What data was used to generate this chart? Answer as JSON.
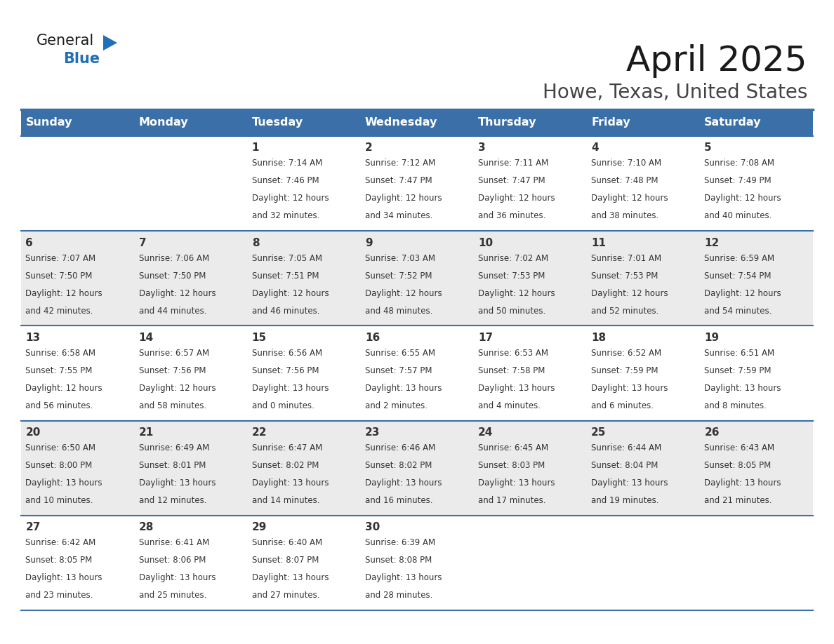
{
  "title": "April 2025",
  "subtitle": "Howe, Texas, United States",
  "header_color": "#3a6fa8",
  "header_text_color": "#ffffff",
  "cell_bg_white": "#ffffff",
  "cell_bg_gray": "#ebebeb",
  "text_color": "#333333",
  "border_color": "#3a6fa8",
  "days_of_week": [
    "Sunday",
    "Monday",
    "Tuesday",
    "Wednesday",
    "Thursday",
    "Friday",
    "Saturday"
  ],
  "weeks": [
    [
      {
        "day": "",
        "info": ""
      },
      {
        "day": "",
        "info": ""
      },
      {
        "day": "1",
        "info": "Sunrise: 7:14 AM\nSunset: 7:46 PM\nDaylight: 12 hours\nand 32 minutes."
      },
      {
        "day": "2",
        "info": "Sunrise: 7:12 AM\nSunset: 7:47 PM\nDaylight: 12 hours\nand 34 minutes."
      },
      {
        "day": "3",
        "info": "Sunrise: 7:11 AM\nSunset: 7:47 PM\nDaylight: 12 hours\nand 36 minutes."
      },
      {
        "day": "4",
        "info": "Sunrise: 7:10 AM\nSunset: 7:48 PM\nDaylight: 12 hours\nand 38 minutes."
      },
      {
        "day": "5",
        "info": "Sunrise: 7:08 AM\nSunset: 7:49 PM\nDaylight: 12 hours\nand 40 minutes."
      }
    ],
    [
      {
        "day": "6",
        "info": "Sunrise: 7:07 AM\nSunset: 7:50 PM\nDaylight: 12 hours\nand 42 minutes."
      },
      {
        "day": "7",
        "info": "Sunrise: 7:06 AM\nSunset: 7:50 PM\nDaylight: 12 hours\nand 44 minutes."
      },
      {
        "day": "8",
        "info": "Sunrise: 7:05 AM\nSunset: 7:51 PM\nDaylight: 12 hours\nand 46 minutes."
      },
      {
        "day": "9",
        "info": "Sunrise: 7:03 AM\nSunset: 7:52 PM\nDaylight: 12 hours\nand 48 minutes."
      },
      {
        "day": "10",
        "info": "Sunrise: 7:02 AM\nSunset: 7:53 PM\nDaylight: 12 hours\nand 50 minutes."
      },
      {
        "day": "11",
        "info": "Sunrise: 7:01 AM\nSunset: 7:53 PM\nDaylight: 12 hours\nand 52 minutes."
      },
      {
        "day": "12",
        "info": "Sunrise: 6:59 AM\nSunset: 7:54 PM\nDaylight: 12 hours\nand 54 minutes."
      }
    ],
    [
      {
        "day": "13",
        "info": "Sunrise: 6:58 AM\nSunset: 7:55 PM\nDaylight: 12 hours\nand 56 minutes."
      },
      {
        "day": "14",
        "info": "Sunrise: 6:57 AM\nSunset: 7:56 PM\nDaylight: 12 hours\nand 58 minutes."
      },
      {
        "day": "15",
        "info": "Sunrise: 6:56 AM\nSunset: 7:56 PM\nDaylight: 13 hours\nand 0 minutes."
      },
      {
        "day": "16",
        "info": "Sunrise: 6:55 AM\nSunset: 7:57 PM\nDaylight: 13 hours\nand 2 minutes."
      },
      {
        "day": "17",
        "info": "Sunrise: 6:53 AM\nSunset: 7:58 PM\nDaylight: 13 hours\nand 4 minutes."
      },
      {
        "day": "18",
        "info": "Sunrise: 6:52 AM\nSunset: 7:59 PM\nDaylight: 13 hours\nand 6 minutes."
      },
      {
        "day": "19",
        "info": "Sunrise: 6:51 AM\nSunset: 7:59 PM\nDaylight: 13 hours\nand 8 minutes."
      }
    ],
    [
      {
        "day": "20",
        "info": "Sunrise: 6:50 AM\nSunset: 8:00 PM\nDaylight: 13 hours\nand 10 minutes."
      },
      {
        "day": "21",
        "info": "Sunrise: 6:49 AM\nSunset: 8:01 PM\nDaylight: 13 hours\nand 12 minutes."
      },
      {
        "day": "22",
        "info": "Sunrise: 6:47 AM\nSunset: 8:02 PM\nDaylight: 13 hours\nand 14 minutes."
      },
      {
        "day": "23",
        "info": "Sunrise: 6:46 AM\nSunset: 8:02 PM\nDaylight: 13 hours\nand 16 minutes."
      },
      {
        "day": "24",
        "info": "Sunrise: 6:45 AM\nSunset: 8:03 PM\nDaylight: 13 hours\nand 17 minutes."
      },
      {
        "day": "25",
        "info": "Sunrise: 6:44 AM\nSunset: 8:04 PM\nDaylight: 13 hours\nand 19 minutes."
      },
      {
        "day": "26",
        "info": "Sunrise: 6:43 AM\nSunset: 8:05 PM\nDaylight: 13 hours\nand 21 minutes."
      }
    ],
    [
      {
        "day": "27",
        "info": "Sunrise: 6:42 AM\nSunset: 8:05 PM\nDaylight: 13 hours\nand 23 minutes."
      },
      {
        "day": "28",
        "info": "Sunrise: 6:41 AM\nSunset: 8:06 PM\nDaylight: 13 hours\nand 25 minutes."
      },
      {
        "day": "29",
        "info": "Sunrise: 6:40 AM\nSunset: 8:07 PM\nDaylight: 13 hours\nand 27 minutes."
      },
      {
        "day": "30",
        "info": "Sunrise: 6:39 AM\nSunset: 8:08 PM\nDaylight: 13 hours\nand 28 minutes."
      },
      {
        "day": "",
        "info": ""
      },
      {
        "day": "",
        "info": ""
      },
      {
        "day": "",
        "info": ""
      }
    ]
  ],
  "logo_text_general": "General",
  "logo_text_blue": "Blue",
  "logo_color_general": "#1a1a1a",
  "logo_color_blue": "#2070b8",
  "logo_triangle_color": "#2070b8",
  "title_fontsize": 36,
  "subtitle_fontsize": 20,
  "header_fontsize": 11.5,
  "day_num_fontsize": 11,
  "info_fontsize": 8.5
}
